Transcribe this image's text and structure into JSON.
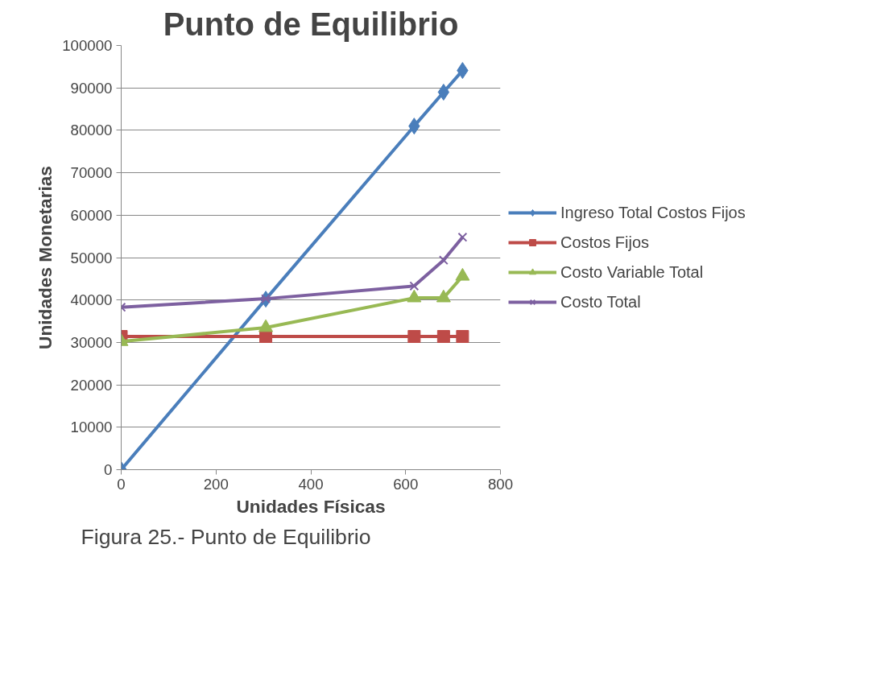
{
  "chart_data": {
    "type": "line",
    "title": "Punto de Equilibrio",
    "xlabel": "Unidades Físicas",
    "ylabel": "Unidades Monetarias",
    "x": [
      0,
      305,
      618,
      680,
      720
    ],
    "series": [
      {
        "name": "Ingreso Total Costos Fijos",
        "color": "#4a7ebb",
        "marker": "diamond",
        "values": [
          0,
          40200,
          81000,
          89000,
          94100
        ]
      },
      {
        "name": "Costos Fijos",
        "color": "#be4b48",
        "marker": "square",
        "values": [
          31400,
          31400,
          31400,
          31400,
          31400
        ]
      },
      {
        "name": "Costo Variable Total",
        "color": "#98b954",
        "marker": "triangle",
        "values": [
          30200,
          33500,
          40500,
          40500,
          45600
        ]
      },
      {
        "name": "Costo Total",
        "color": "#7d60a0",
        "marker": "cross",
        "values": [
          38300,
          40300,
          43300,
          49400,
          54800
        ]
      }
    ],
    "xlim": [
      0,
      800
    ],
    "xticks": [
      0,
      200,
      400,
      600,
      800
    ],
    "ylim": [
      0,
      100000
    ],
    "yticks": [
      0,
      10000,
      20000,
      30000,
      40000,
      50000,
      60000,
      70000,
      80000,
      90000,
      100000
    ],
    "grid": "y",
    "legend": "right",
    "line_style": "solid",
    "annotations": [
      "Figura 25.- Punto de Equilibrio"
    ]
  }
}
